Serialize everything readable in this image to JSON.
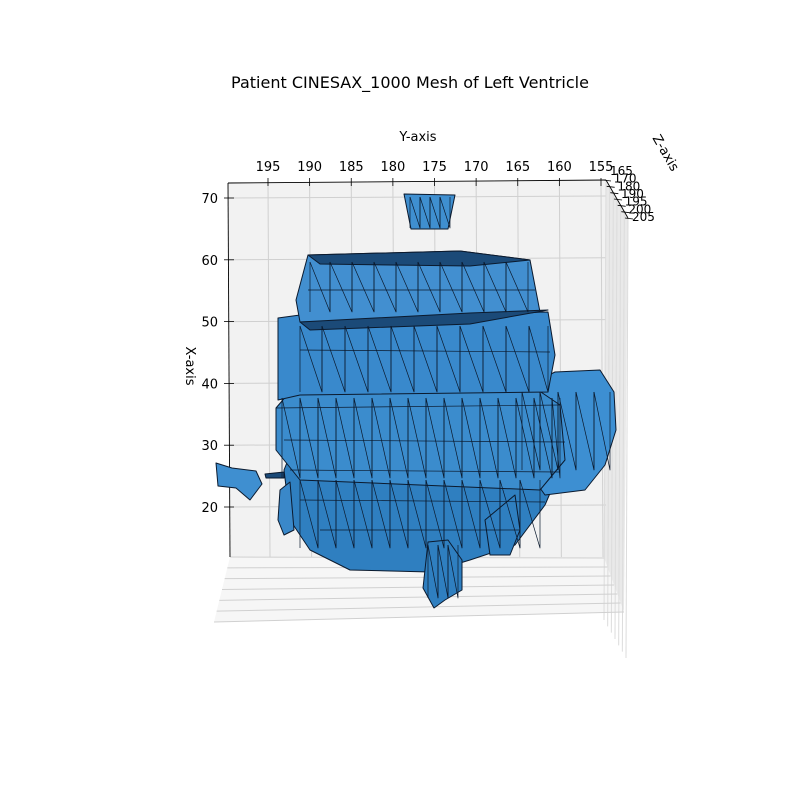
{
  "chart_data": {
    "type": "3d-mesh",
    "title": "Patient CINESAX_1000 Mesh of Left Ventricle",
    "xlabel": "Y-axis",
    "ylabel": "X-axis",
    "zlabel": "Z-axis",
    "y_axis_ticks": [
      195,
      190,
      185,
      180,
      175,
      170,
      165,
      160,
      155
    ],
    "x_axis_ticks": [
      70,
      60,
      50,
      40,
      30,
      20
    ],
    "z_axis_ticks": [
      165,
      170,
      180,
      190,
      195,
      200,
      205
    ],
    "y_axis_range": [
      155,
      197
    ],
    "x_axis_range": [
      12,
      72
    ],
    "grid": true,
    "face_color": "#3f8fd0",
    "edge_color": "#0b1a2e",
    "pane_color": "#f2f2f2"
  }
}
